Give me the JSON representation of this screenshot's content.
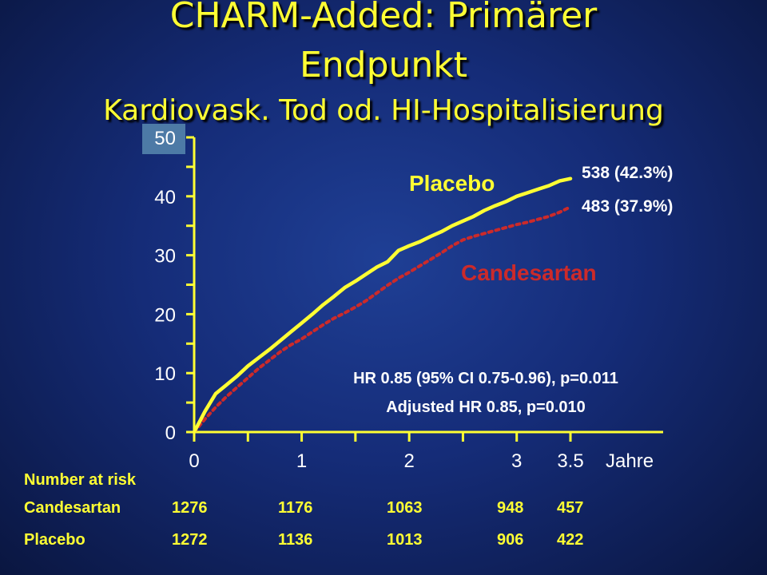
{
  "title": {
    "line1": "CHARM-Added: Primärer",
    "line2": "Endpunkt",
    "line3": "Kardiovask. Tod od. HI-Hospitalisierung"
  },
  "colors": {
    "background": "#152c78",
    "axis": "#ffff33",
    "placebo": "#ffff33",
    "candesartan": "#cc2a2a",
    "tick_box": "#4d7aa6"
  },
  "chart_data": {
    "type": "line",
    "xlabel": "Jahre",
    "x_ticks": [
      "0",
      "1",
      "2",
      "3",
      "3.5"
    ],
    "xlim": [
      0,
      3.5
    ],
    "y_ticks": [
      "0",
      "10",
      "20",
      "30",
      "40",
      "50"
    ],
    "ylim": [
      0,
      50
    ],
    "grid": false,
    "series": [
      {
        "name": "Placebo",
        "end_label": "538 (42.3%)",
        "x": [
          0,
          0.1,
          0.2,
          0.3,
          0.4,
          0.5,
          0.6,
          0.7,
          0.8,
          0.9,
          1.0,
          1.1,
          1.2,
          1.3,
          1.4,
          1.5,
          1.6,
          1.7,
          1.8,
          1.9,
          2.0,
          2.1,
          2.2,
          2.3,
          2.4,
          2.5,
          2.6,
          2.7,
          2.8,
          2.9,
          3.0,
          3.1,
          3.2,
          3.3,
          3.4,
          3.5
        ],
        "values": [
          0,
          3.5,
          6.5,
          8.0,
          9.5,
          11.2,
          12.6,
          14.0,
          15.5,
          17.0,
          18.5,
          20.0,
          21.6,
          23.0,
          24.5,
          25.6,
          26.8,
          28.0,
          28.9,
          30.8,
          31.6,
          32.3,
          33.2,
          34.0,
          35.0,
          35.8,
          36.6,
          37.6,
          38.4,
          39.1,
          40.0,
          40.6,
          41.2,
          41.8,
          42.6,
          43.0
        ]
      },
      {
        "name": "Candesartan",
        "end_label": "483 (37.9%)",
        "x": [
          0,
          0.1,
          0.2,
          0.3,
          0.4,
          0.5,
          0.6,
          0.7,
          0.8,
          0.9,
          1.0,
          1.1,
          1.2,
          1.3,
          1.4,
          1.5,
          1.6,
          1.7,
          1.8,
          1.9,
          2.0,
          2.1,
          2.2,
          2.3,
          2.4,
          2.5,
          2.6,
          2.7,
          2.8,
          2.9,
          3.0,
          3.1,
          3.2,
          3.3,
          3.4,
          3.5
        ],
        "values": [
          0,
          2.2,
          4.2,
          6.0,
          7.6,
          9.2,
          10.8,
          12.2,
          13.6,
          14.8,
          15.8,
          17.0,
          18.2,
          19.3,
          20.2,
          21.2,
          22.3,
          23.6,
          24.9,
          26.1,
          27.1,
          28.2,
          29.3,
          30.4,
          31.6,
          32.6,
          33.2,
          33.7,
          34.2,
          34.7,
          35.2,
          35.6,
          36.1,
          36.6,
          37.3,
          38.2
        ]
      }
    ],
    "annotations": {
      "hr": "HR 0.85  (95% CI 0.75-0.96), p=0.011",
      "adjusted": "Adjusted HR 0.85, p=0.010"
    }
  },
  "risk_table": {
    "heading": "Number at risk",
    "rows": [
      {
        "label": "Candesartan",
        "values": [
          "1276",
          "1176",
          "1063",
          "948",
          "457"
        ]
      },
      {
        "label": "Placebo",
        "values": [
          "1272",
          "1136",
          "1013",
          "906",
          "422"
        ]
      }
    ]
  }
}
